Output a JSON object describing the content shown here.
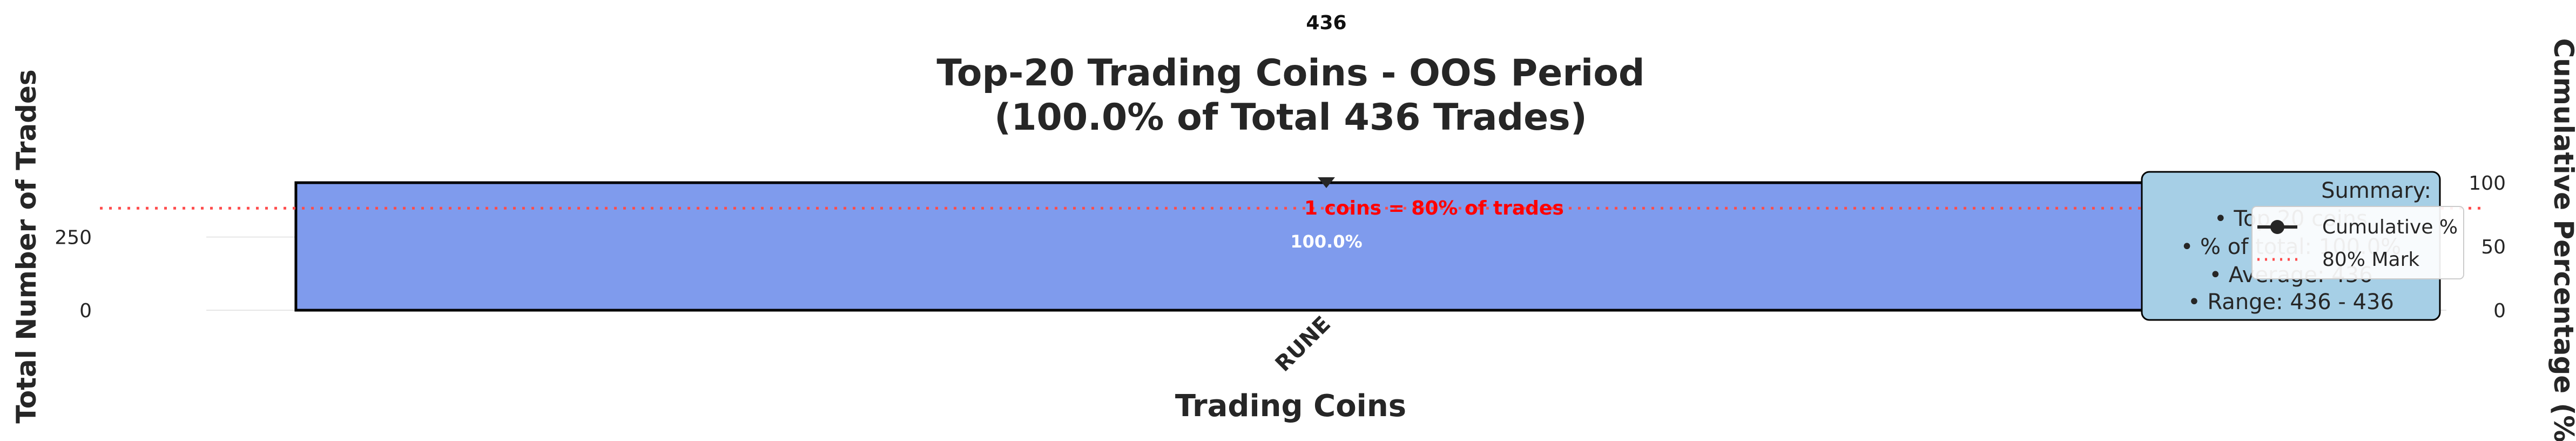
{
  "chart_data": {
    "type": "bar",
    "title": "Top-20 Trading Coins - OOS Period\n(100.0% of Total 436 Trades)",
    "xlabel": "Trading Coins",
    "ylabel": "Total Number of Trades",
    "y2label": "Cumulative Percentage (%)",
    "categories": [
      "RUNE"
    ],
    "values": [
      436
    ],
    "value_labels": [
      "436"
    ],
    "bar_pct_labels": [
      "100.0%"
    ],
    "ylim": [
      0,
      436
    ],
    "yticks": [
      0,
      250
    ],
    "y2lim": [
      0,
      100
    ],
    "y2ticks": [
      0,
      50,
      100
    ],
    "series": [
      {
        "name": "Cumulative %",
        "values": [
          100.0
        ],
        "axis": "right",
        "color": "#262626"
      },
      {
        "name": "80% Mark",
        "values": [
          80
        ],
        "axis": "right",
        "style": "dotted",
        "color": "#ff4d4d"
      }
    ],
    "annotation": "1 coins = 80% of trades",
    "summary": {
      "title": "Summary:",
      "lines": [
        "• Top 20 coins",
        "• % of total: 100.0%",
        "• Average: 436",
        "• Range: 436 - 436"
      ]
    },
    "legend": {
      "placement": "upper right",
      "entries": [
        "Cumulative %",
        "80% Mark"
      ]
    },
    "grid": true,
    "colors": {
      "bar": "#7f9bed",
      "bar_edge": "#000000",
      "mark_line": "#ff4d4d",
      "annotation": "#ff0000",
      "summary_bg": "#a6cfe6",
      "cumulative": "#262626"
    }
  }
}
